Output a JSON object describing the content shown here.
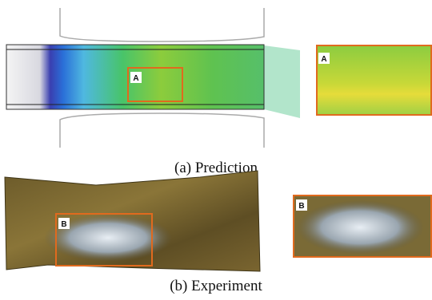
{
  "prediction": {
    "caption": "(a) Prediction",
    "zoom_label": "A",
    "inset_label": "A"
  },
  "experiment": {
    "caption": "(b) Experiment",
    "zoom_label": "B",
    "inset_label": "B"
  }
}
